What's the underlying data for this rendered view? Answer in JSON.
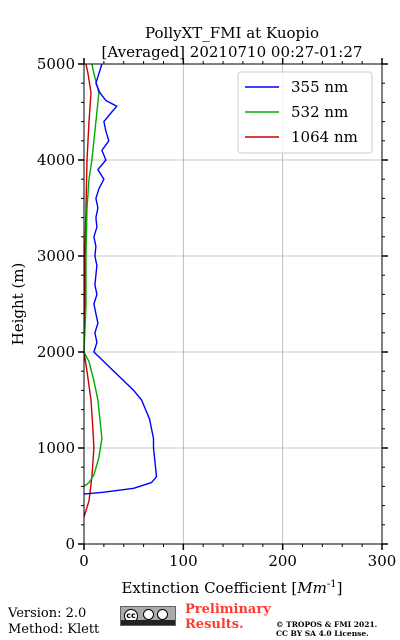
{
  "chart_data": {
    "type": "line",
    "title_line1": "PollyXT_FMI at Kuopio",
    "title_line2": "[Averaged] 20210710 00:27-01:27",
    "xlabel": "Extinction Coefficient [",
    "xlabel_unit": "Mm",
    "xlabel_exp": "-1",
    "xlabel_close": "]",
    "ylabel": "Height (m)",
    "xlim": [
      0,
      300
    ],
    "ylim": [
      0,
      5000
    ],
    "xticks": [
      0,
      100,
      200,
      300
    ],
    "yticks": [
      0,
      1000,
      2000,
      3000,
      4000,
      5000
    ],
    "xtick_labels": [
      "0",
      "100",
      "200",
      "300"
    ],
    "ytick_labels": [
      "0",
      "1000",
      "2000",
      "3000",
      "4000",
      "5000"
    ],
    "grid": true,
    "legend_position": "top-right",
    "series": [
      {
        "name": "355 nm",
        "color": "#0000ff",
        "points": [
          [
            0,
            520
          ],
          [
            20,
            540
          ],
          [
            50,
            580
          ],
          [
            68,
            640
          ],
          [
            73,
            700
          ],
          [
            72,
            800
          ],
          [
            71,
            900
          ],
          [
            70,
            1000
          ],
          [
            70,
            1100
          ],
          [
            68,
            1200
          ],
          [
            66,
            1300
          ],
          [
            62,
            1400
          ],
          [
            58,
            1500
          ],
          [
            50,
            1600
          ],
          [
            40,
            1700
          ],
          [
            30,
            1800
          ],
          [
            20,
            1900
          ],
          [
            10,
            2000
          ],
          [
            13,
            2100
          ],
          [
            11,
            2200
          ],
          [
            14,
            2300
          ],
          [
            12,
            2400
          ],
          [
            10,
            2500
          ],
          [
            13,
            2600
          ],
          [
            11,
            2700
          ],
          [
            12,
            2800
          ],
          [
            13,
            2900
          ],
          [
            11,
            3000
          ],
          [
            12,
            3100
          ],
          [
            10,
            3200
          ],
          [
            13,
            3300
          ],
          [
            12,
            3400
          ],
          [
            14,
            3500
          ],
          [
            12,
            3600
          ],
          [
            15,
            3700
          ],
          [
            20,
            3800
          ],
          [
            14,
            3900
          ],
          [
            22,
            4000
          ],
          [
            18,
            4100
          ],
          [
            25,
            4200
          ],
          [
            22,
            4300
          ],
          [
            20,
            4400
          ],
          [
            28,
            4500
          ],
          [
            33,
            4560
          ],
          [
            22,
            4620
          ],
          [
            16,
            4700
          ],
          [
            12,
            4800
          ],
          [
            15,
            4900
          ],
          [
            18,
            5000
          ]
        ]
      },
      {
        "name": "532 nm",
        "color": "#00aa00",
        "points": [
          [
            0,
            600
          ],
          [
            5,
            640
          ],
          [
            10,
            720
          ],
          [
            15,
            900
          ],
          [
            18,
            1100
          ],
          [
            16,
            1300
          ],
          [
            14,
            1500
          ],
          [
            10,
            1700
          ],
          [
            5,
            1900
          ],
          [
            0,
            2000
          ],
          [
            2,
            2500
          ],
          [
            2,
            3000
          ],
          [
            3,
            3500
          ],
          [
            5,
            3800
          ],
          [
            8,
            4000
          ],
          [
            10,
            4200
          ],
          [
            12,
            4400
          ],
          [
            15,
            4700
          ],
          [
            10,
            4900
          ],
          [
            8,
            5000
          ]
        ]
      },
      {
        "name": "1064 nm",
        "color": "#cc0000",
        "points": [
          [
            0,
            280
          ],
          [
            5,
            450
          ],
          [
            8,
            700
          ],
          [
            10,
            1000
          ],
          [
            9,
            1200
          ],
          [
            7,
            1500
          ],
          [
            3,
            1800
          ],
          [
            0,
            2000
          ],
          [
            1,
            2500
          ],
          [
            1,
            3000
          ],
          [
            2,
            3500
          ],
          [
            3,
            4000
          ],
          [
            5,
            4400
          ],
          [
            7,
            4700
          ],
          [
            4,
            4900
          ],
          [
            2,
            5000
          ]
        ]
      }
    ]
  },
  "footer": {
    "version": "Version: 2.0",
    "method": "Method: Klett",
    "preliminary_line1": "Preliminary",
    "preliminary_line2": "Results.",
    "copyright_line1": "© TROPOS & FMI 2021.",
    "copyright_line2": "CC BY SA 4.0 License."
  }
}
